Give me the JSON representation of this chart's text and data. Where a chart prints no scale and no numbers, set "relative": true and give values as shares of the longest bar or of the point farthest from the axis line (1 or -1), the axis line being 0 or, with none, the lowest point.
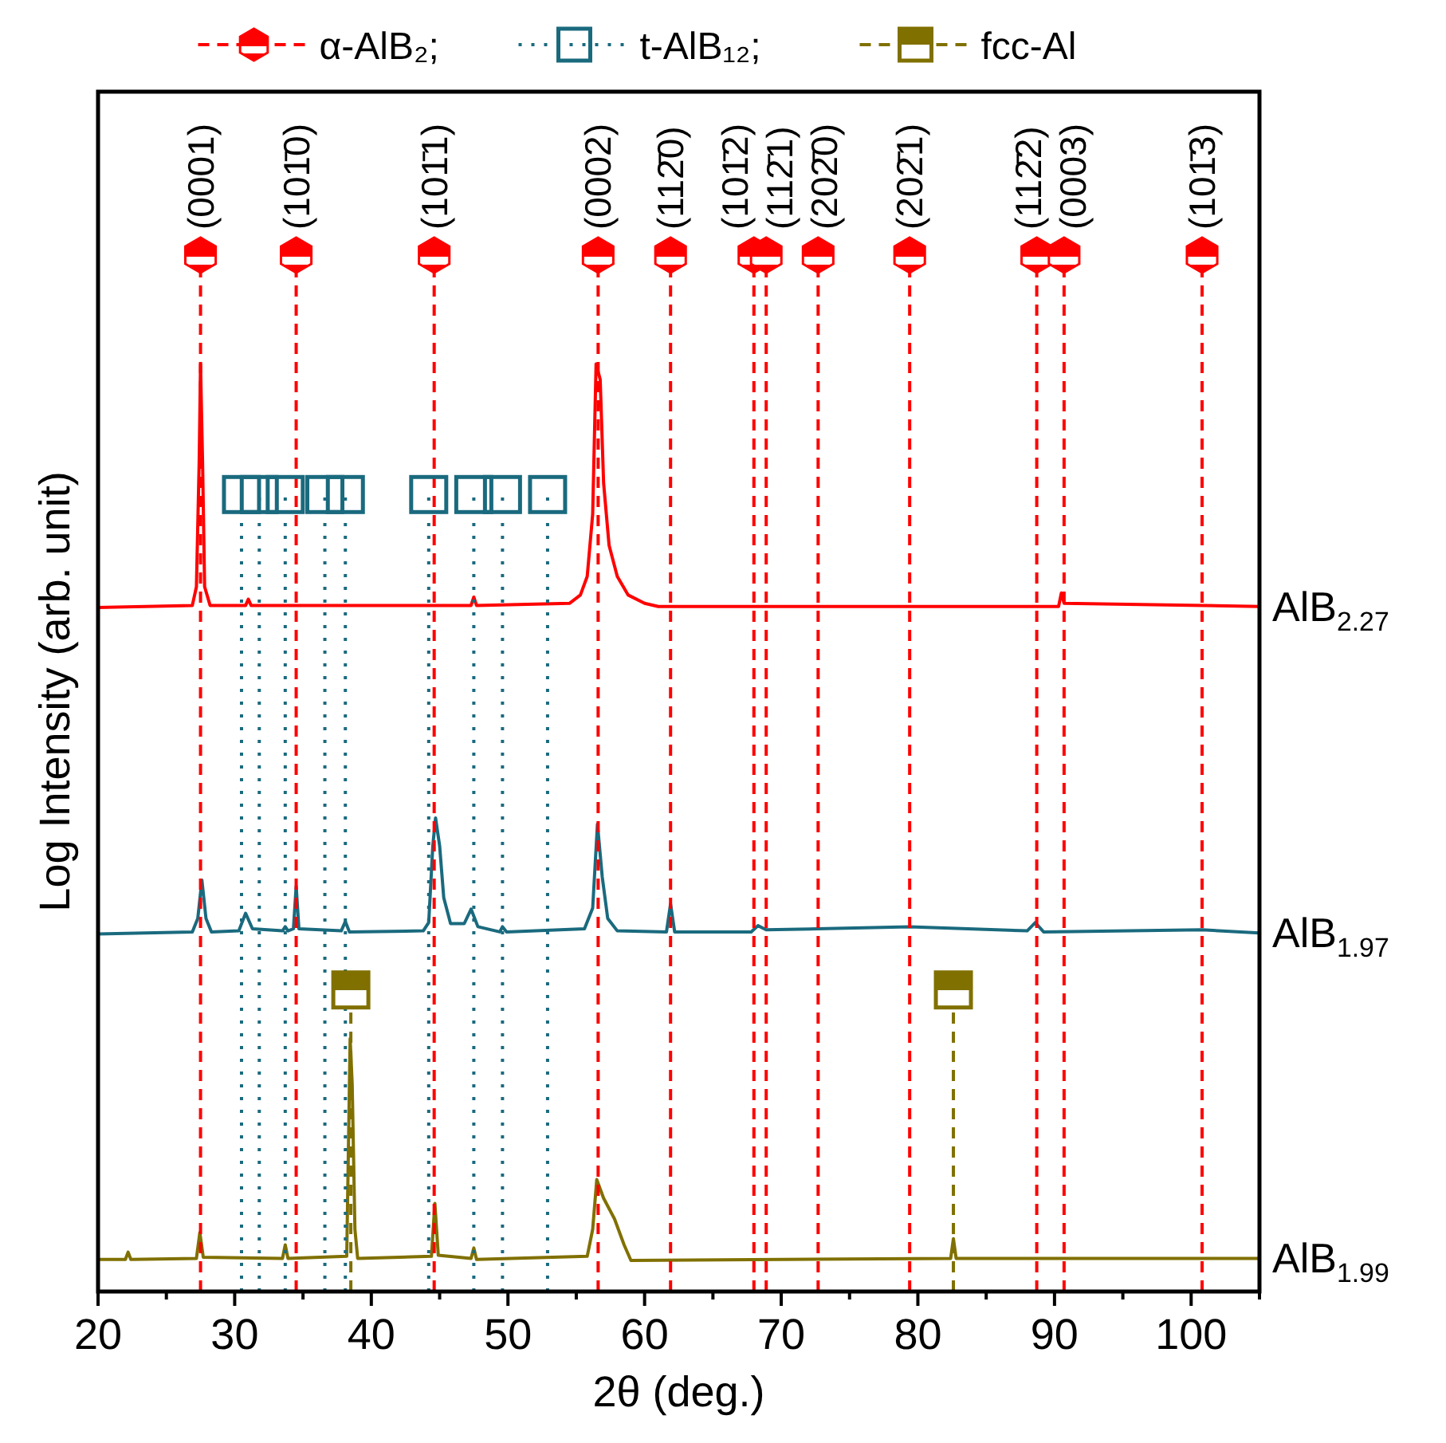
{
  "chart_data": {
    "type": "line",
    "relative": true,
    "xlabel": "2θ (deg.)",
    "ylabel": "Log Intensity (arb. unit)",
    "xlim": [
      20,
      105
    ],
    "xticks": [
      20,
      {
        "value": 25,
        "label": null
      },
      30,
      {
        "value": 35,
        "label": null
      },
      40,
      {
        "value": 45,
        "label": null
      },
      50,
      {
        "value": 55,
        "label": null
      },
      60,
      {
        "value": 65,
        "label": null
      },
      70,
      {
        "value": 75,
        "label": null
      },
      80,
      {
        "value": 85,
        "label": null
      },
      90,
      {
        "value": 95,
        "label": null
      },
      100,
      {
        "value": 105,
        "label": null
      }
    ],
    "legend": "top",
    "grid": false,
    "series": [
      {
        "name": "AlB$_{2.27}$",
        "color": "#ff0000",
        "x": [
          20,
          26.9,
          27.2,
          27.4,
          27.5,
          27.65,
          27.8,
          28.2,
          30.8,
          31.0,
          31.2,
          47.3,
          47.5,
          47.7,
          54.5,
          55.3,
          55.8,
          56.2,
          56.45,
          56.75,
          57.0,
          57.4,
          58.0,
          58.8,
          60.0,
          61,
          90.3,
          90.5,
          90.7,
          105
        ],
        "values": [
          0.66,
          0.662,
          0.68,
          0.8,
          0.895,
          0.8,
          0.68,
          0.662,
          0.662,
          0.668,
          0.662,
          0.662,
          0.67,
          0.662,
          0.664,
          0.672,
          0.69,
          0.75,
          0.895,
          0.88,
          0.78,
          0.72,
          0.69,
          0.672,
          0.664,
          0.661,
          0.661,
          0.674,
          0.664,
          0.661
        ]
      },
      {
        "name": "AlB$_{1.97}$",
        "color": "#1a6a7e",
        "x": [
          20,
          26.9,
          27.3,
          27.6,
          27.9,
          28.3,
          30.3,
          30.8,
          31.3,
          33.5,
          33.7,
          33.9,
          34.3,
          34.5,
          34.7,
          37.8,
          38.1,
          38.4,
          43.8,
          44.2,
          44.5,
          44.7,
          45.0,
          45.3,
          45.8,
          46.8,
          47.3,
          47.8,
          49.4,
          49.6,
          49.9,
          55.6,
          56.2,
          56.55,
          56.9,
          57.3,
          58,
          61.6,
          61.9,
          62.2,
          67.8,
          68.3,
          68.9,
          72.7,
          79.4,
          88.0,
          88.6,
          89.2,
          100.8,
          105
        ],
        "values": [
          0.345,
          0.347,
          0.36,
          0.397,
          0.36,
          0.347,
          0.348,
          0.365,
          0.35,
          0.348,
          0.352,
          0.348,
          0.35,
          0.391,
          0.35,
          0.348,
          0.357,
          0.347,
          0.348,
          0.356,
          0.43,
          0.457,
          0.43,
          0.38,
          0.355,
          0.355,
          0.369,
          0.352,
          0.347,
          0.352,
          0.347,
          0.35,
          0.37,
          0.451,
          0.4,
          0.36,
          0.348,
          0.347,
          0.374,
          0.347,
          0.347,
          0.353,
          0.349,
          0.35,
          0.352,
          0.348,
          0.356,
          0.347,
          0.349,
          0.346
        ]
      },
      {
        "name": "AlB$_{1.99}$",
        "color": "#807000",
        "x": [
          20,
          22.0,
          22.2,
          22.4,
          27.2,
          27.45,
          27.7,
          33.5,
          33.7,
          33.9,
          38.2,
          38.45,
          38.6,
          38.8,
          39.0,
          44.4,
          44.65,
          44.9,
          47.3,
          47.5,
          47.7,
          55.8,
          56.2,
          56.5,
          57.0,
          57.8,
          58.5,
          59.0,
          82.4,
          82.6,
          82.8,
          105
        ],
        "values": [
          0.031,
          0.031,
          0.038,
          0.031,
          0.032,
          0.057,
          0.033,
          0.032,
          0.045,
          0.032,
          0.034,
          0.244,
          0.2,
          0.06,
          0.032,
          0.034,
          0.085,
          0.035,
          0.032,
          0.042,
          0.031,
          0.034,
          0.06,
          0.108,
          0.09,
          0.07,
          0.045,
          0.03,
          0.032,
          0.051,
          0.032,
          0.032
        ]
      },
      {
        "name": "α-AlB₂;",
        "type": "lollipop",
        "color": "#ff0000",
        "line_style": "dashed",
        "x": [
          27.5,
          34.5,
          44.6,
          56.6,
          61.9,
          68.0,
          68.9,
          72.7,
          79.4,
          88.7,
          90.7,
          100.8
        ],
        "values": [
          1,
          1,
          1,
          1,
          1,
          1,
          1,
          1,
          1,
          1,
          1,
          1
        ]
      },
      {
        "name": "t-AlB₁₂;",
        "type": "lollipop",
        "color": "#1a6a7e",
        "marker": "square",
        "line_style": "dotted",
        "x": [
          30.5,
          31.8,
          33.7,
          36.6,
          38.1,
          44.2,
          47.5,
          49.6,
          52.9
        ],
        "values": [
          0.769,
          0.769,
          0.769,
          0.769,
          0.769,
          0.769,
          0.769,
          0.769,
          0.769
        ]
      },
      {
        "name": "fcc-Al",
        "type": "lollipop",
        "color": "#807000",
        "marker": "square",
        "line_style": "dashed",
        "x": [
          38.5,
          82.6
        ],
        "values": [
          0.291,
          0.291
        ]
      }
    ],
    "annotations": [
      {
        "text": "(0001)",
        "x": 27.5,
        "y": 1
      },
      {
        "text": "(101̄0)",
        "x": 34.5,
        "y": 1
      },
      {
        "text": "(101̄1)",
        "x": 44.6,
        "y": 1
      },
      {
        "text": "(0002)",
        "x": 56.6,
        "y": 1
      },
      {
        "text": "(112̄0)",
        "x": 61.9,
        "y": 1
      },
      {
        "text": "(101̄2)",
        "x": 68.0,
        "y": 1
      },
      {
        "text": "(112̄1)",
        "x": 68.9,
        "y": 1
      },
      {
        "text": "(202̄0)",
        "x": 72.7,
        "y": 1
      },
      {
        "text": "(202̄1)",
        "x": 79.4,
        "y": 1
      },
      {
        "text": "(112̄2)",
        "x": 88.7,
        "y": 1
      },
      {
        "text": "(0003)",
        "x": 90.7,
        "y": 1
      },
      {
        "text": "(101̄3)",
        "x": 100.8,
        "y": 1
      }
    ]
  }
}
